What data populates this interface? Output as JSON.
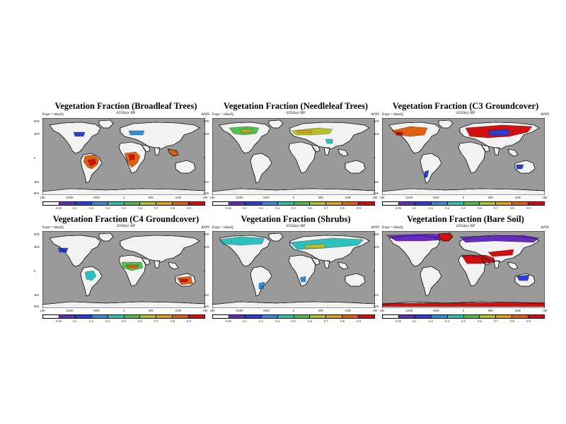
{
  "figure": {
    "expt_label": "Expt = tdnaQ",
    "season": "ANN",
    "lat_labels": [
      "60N",
      "40N",
      "0",
      "40S",
      "80S"
    ],
    "lon_labels": [
      "180",
      "120W",
      "60W",
      "0",
      "60E",
      "120E",
      "180"
    ],
    "colorbar_labels": [
      "0.05",
      "0.1",
      "0.2",
      "0.4",
      "0.5",
      "0.6",
      "0.7",
      "0.8",
      "0.9"
    ],
    "colorbar_colors": [
      "#ffffff",
      "#6a2bc4",
      "#2a3fd6",
      "#2f8fd8",
      "#2fbfbf",
      "#4fbf4f",
      "#b8c02a",
      "#e0a020",
      "#e06010",
      "#d01010"
    ],
    "ocean_color": "#9a9a9a",
    "land_color": "#f2f2f2"
  },
  "panels": [
    {
      "title": "Vegetation Fraction (Broadleaf Trees)",
      "subtitle": "0592kyr BP",
      "variable": "broadleaf-trees"
    },
    {
      "title": "Vegetation Fraction (Needleleaf Trees)",
      "subtitle": "0592kyr BP",
      "variable": "needleleaf-trees"
    },
    {
      "title": "Vegetation Fraction (C3 Groundcover)",
      "subtitle": "4592kyr BP",
      "variable": "c3-groundcover"
    },
    {
      "title": "Vegetation Fraction (C4 Groundcover)",
      "subtitle": "2592kyr BP",
      "variable": "c4-groundcover"
    },
    {
      "title": "Vegetation Fraction (Shrubs)",
      "subtitle": "0592kyr BP",
      "variable": "shrubs"
    },
    {
      "title": "Vegetation Fraction (Bare Soil)",
      "subtitle": "4592kyr BP",
      "variable": "bare-soil"
    }
  ]
}
